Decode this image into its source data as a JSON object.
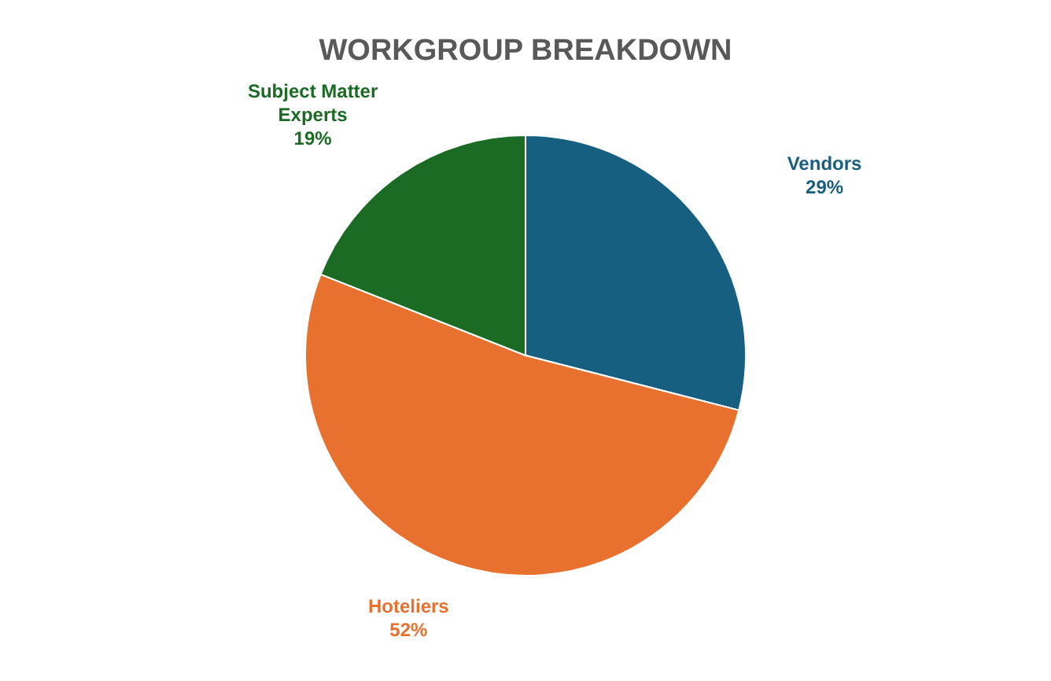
{
  "chart_data": {
    "type": "pie",
    "title": "WORKGROUP BREAKDOWN",
    "categories": [
      "Vendors",
      "Hoteliers",
      "Subject Matter Experts"
    ],
    "values": [
      29,
      52,
      19
    ],
    "value_labels": [
      "29%",
      "52%",
      "19%"
    ],
    "colors": [
      "#165f80",
      "#e87130",
      "#1b6b25"
    ]
  }
}
